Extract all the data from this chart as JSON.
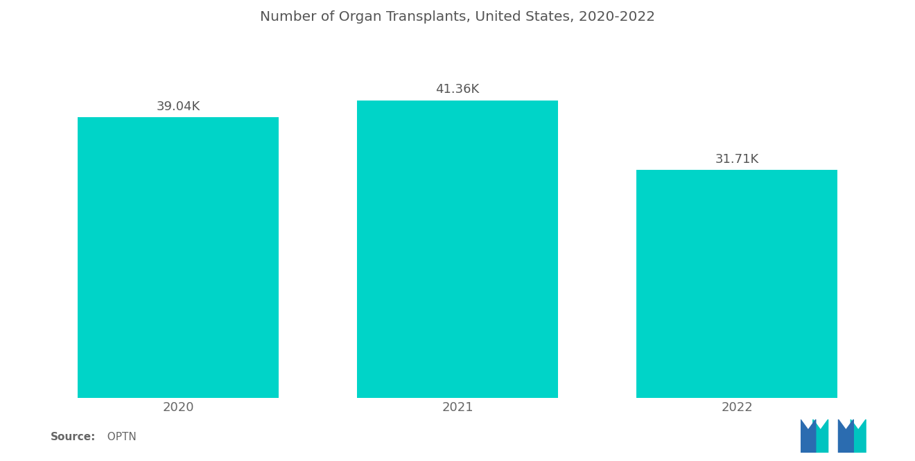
{
  "title": "Number of Organ Transplants, United States, 2020-2022",
  "categories": [
    "2020",
    "2021",
    "2022"
  ],
  "values": [
    39040,
    41360,
    31710
  ],
  "labels": [
    "39.04K",
    "41.36K",
    "31.71K"
  ],
  "bar_color": "#00D4C8",
  "background_color": "#ffffff",
  "title_fontsize": 14.5,
  "label_fontsize": 13,
  "tick_fontsize": 13,
  "source_bold": "Source:",
  "source_normal": "  OPTN",
  "ylim": [
    0,
    50000
  ],
  "bar_width": 0.72,
  "logo_blue": "#2B6CB0",
  "logo_teal": "#00C4C0",
  "label_color": "#555555",
  "tick_color": "#666666"
}
